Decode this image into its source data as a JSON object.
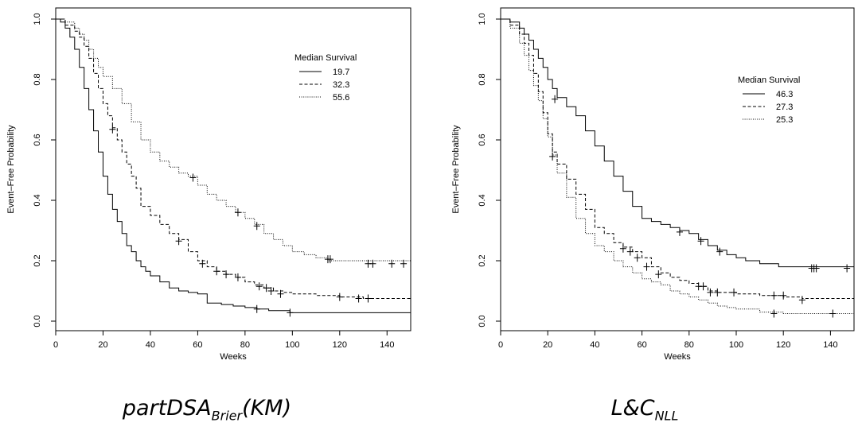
{
  "chart_data": [
    {
      "type": "line",
      "style": "step (Kaplan-Meier survival curves with censoring marks)",
      "xlabel": "Weeks",
      "ylabel": "Event–Free Probability",
      "xlim": [
        0,
        150
      ],
      "ylim": [
        0,
        1
      ],
      "xticks": [
        "0",
        "20",
        "40",
        "60",
        "80",
        "100",
        "120",
        "140"
      ],
      "yticks": [
        "0.0",
        "0.2",
        "0.4",
        "0.6",
        "0.8",
        "1.0"
      ],
      "legend_title": "Median Survival",
      "legend_position": "top-right",
      "series": [
        {
          "name": "19.7",
          "line_style": "solid",
          "x": [
            0,
            2,
            4,
            6,
            8,
            10,
            12,
            14,
            16,
            18,
            20,
            22,
            24,
            26,
            28,
            30,
            32,
            34,
            36,
            38,
            40,
            44,
            48,
            52,
            56,
            60,
            64,
            70,
            75,
            80,
            85,
            90,
            99,
            150
          ],
          "y": [
            1.0,
            0.99,
            0.97,
            0.94,
            0.9,
            0.84,
            0.77,
            0.7,
            0.63,
            0.56,
            0.48,
            0.42,
            0.37,
            0.33,
            0.29,
            0.25,
            0.23,
            0.2,
            0.18,
            0.165,
            0.15,
            0.13,
            0.11,
            0.1,
            0.095,
            0.09,
            0.06,
            0.055,
            0.05,
            0.045,
            0.04,
            0.035,
            0.028,
            0.028
          ],
          "censor_x": [
            85,
            99
          ],
          "censor_y": [
            0.04,
            0.028
          ]
        },
        {
          "name": "32.3",
          "line_style": "dashed",
          "x": [
            0,
            4,
            8,
            10,
            12,
            14,
            16,
            18,
            20,
            22,
            24,
            26,
            28,
            30,
            32,
            34,
            36,
            40,
            44,
            48,
            52,
            56,
            60,
            64,
            68,
            72,
            76,
            80,
            84,
            88,
            92,
            96,
            100,
            110,
            120,
            130,
            150
          ],
          "y": [
            1.0,
            0.98,
            0.96,
            0.94,
            0.91,
            0.87,
            0.82,
            0.77,
            0.72,
            0.68,
            0.64,
            0.6,
            0.56,
            0.52,
            0.48,
            0.44,
            0.38,
            0.35,
            0.32,
            0.29,
            0.27,
            0.23,
            0.2,
            0.18,
            0.165,
            0.155,
            0.145,
            0.13,
            0.12,
            0.11,
            0.1,
            0.095,
            0.09,
            0.085,
            0.08,
            0.075,
            0.075
          ],
          "censor_x": [
            24,
            52,
            62,
            68,
            72,
            77,
            86,
            89,
            91,
            95,
            120,
            128,
            132
          ],
          "censor_y": [
            0.635,
            0.265,
            0.19,
            0.165,
            0.155,
            0.145,
            0.115,
            0.11,
            0.1,
            0.09,
            0.08,
            0.075,
            0.075
          ]
        },
        {
          "name": "55.6",
          "line_style": "dotted",
          "x": [
            0,
            4,
            8,
            10,
            12,
            14,
            16,
            18,
            20,
            24,
            28,
            32,
            36,
            40,
            44,
            48,
            52,
            56,
            60,
            64,
            68,
            72,
            76,
            80,
            84,
            88,
            92,
            96,
            100,
            105,
            110,
            115,
            150
          ],
          "y": [
            1.0,
            0.99,
            0.97,
            0.95,
            0.93,
            0.9,
            0.87,
            0.84,
            0.81,
            0.77,
            0.72,
            0.66,
            0.6,
            0.56,
            0.53,
            0.51,
            0.49,
            0.48,
            0.45,
            0.42,
            0.4,
            0.38,
            0.36,
            0.34,
            0.32,
            0.29,
            0.27,
            0.25,
            0.23,
            0.22,
            0.21,
            0.2,
            0.19
          ],
          "censor_x": [
            58,
            77,
            85,
            115,
            116,
            132,
            134,
            142,
            147
          ],
          "censor_y": [
            0.475,
            0.36,
            0.315,
            0.205,
            0.205,
            0.19,
            0.19,
            0.19,
            0.19
          ]
        }
      ]
    },
    {
      "type": "line",
      "style": "step (Kaplan-Meier survival curves with censoring marks)",
      "xlabel": "Weeks",
      "ylabel": "Event–Free Probability",
      "xlim": [
        0,
        150
      ],
      "ylim": [
        0,
        1
      ],
      "xticks": [
        "0",
        "20",
        "40",
        "60",
        "80",
        "100",
        "120",
        "140"
      ],
      "yticks": [
        "0.0",
        "0.2",
        "0.4",
        "0.6",
        "0.8",
        "1.0"
      ],
      "legend_title": "Median Survival",
      "legend_position": "top-right",
      "series": [
        {
          "name": "46.3",
          "line_style": "solid",
          "x": [
            0,
            4,
            8,
            10,
            12,
            14,
            16,
            18,
            20,
            22,
            24,
            28,
            32,
            36,
            40,
            44,
            48,
            52,
            56,
            60,
            64,
            68,
            72,
            76,
            80,
            84,
            88,
            92,
            96,
            100,
            104,
            110,
            118,
            150
          ],
          "y": [
            1.0,
            0.99,
            0.97,
            0.95,
            0.93,
            0.9,
            0.87,
            0.84,
            0.8,
            0.77,
            0.74,
            0.71,
            0.68,
            0.63,
            0.58,
            0.53,
            0.48,
            0.43,
            0.38,
            0.34,
            0.33,
            0.32,
            0.31,
            0.3,
            0.29,
            0.27,
            0.25,
            0.235,
            0.22,
            0.21,
            0.2,
            0.19,
            0.18,
            0.175
          ],
          "censor_x": [
            23,
            76,
            85,
            93,
            132,
            133,
            134,
            147
          ],
          "censor_y": [
            0.735,
            0.295,
            0.265,
            0.23,
            0.175,
            0.175,
            0.175,
            0.175
          ]
        },
        {
          "name": "27.3",
          "line_style": "dashed",
          "x": [
            0,
            4,
            8,
            10,
            12,
            14,
            16,
            18,
            20,
            22,
            24,
            28,
            32,
            36,
            40,
            44,
            48,
            52,
            56,
            60,
            64,
            68,
            72,
            76,
            80,
            84,
            88,
            92,
            100,
            110,
            120,
            128,
            150
          ],
          "y": [
            1.0,
            0.98,
            0.95,
            0.92,
            0.88,
            0.82,
            0.76,
            0.69,
            0.62,
            0.56,
            0.52,
            0.47,
            0.42,
            0.37,
            0.31,
            0.29,
            0.26,
            0.245,
            0.23,
            0.21,
            0.18,
            0.16,
            0.145,
            0.135,
            0.125,
            0.115,
            0.1,
            0.095,
            0.09,
            0.085,
            0.08,
            0.075,
            0.07
          ],
          "censor_x": [
            22,
            52,
            55,
            58,
            62,
            67,
            84,
            86,
            89,
            92,
            99,
            116,
            120,
            128
          ],
          "censor_y": [
            0.545,
            0.24,
            0.23,
            0.21,
            0.18,
            0.155,
            0.115,
            0.115,
            0.095,
            0.095,
            0.095,
            0.085,
            0.085,
            0.07
          ]
        },
        {
          "name": "25.3",
          "line_style": "dotted",
          "x": [
            0,
            4,
            8,
            10,
            12,
            14,
            16,
            18,
            20,
            22,
            24,
            28,
            32,
            36,
            40,
            44,
            48,
            52,
            56,
            60,
            64,
            68,
            72,
            76,
            80,
            84,
            88,
            92,
            96,
            100,
            110,
            120,
            150
          ],
          "y": [
            1.0,
            0.97,
            0.92,
            0.88,
            0.83,
            0.78,
            0.73,
            0.67,
            0.61,
            0.55,
            0.49,
            0.41,
            0.34,
            0.29,
            0.25,
            0.23,
            0.2,
            0.18,
            0.16,
            0.14,
            0.13,
            0.12,
            0.1,
            0.09,
            0.08,
            0.07,
            0.06,
            0.05,
            0.045,
            0.04,
            0.03,
            0.025,
            0.02
          ],
          "censor_x": [
            116,
            141
          ],
          "censor_y": [
            0.025,
            0.025
          ]
        }
      ]
    }
  ],
  "captions": {
    "left_main": "partDSA",
    "left_sub": "Brier",
    "left_tail": "(KM)",
    "right_main": "L&C",
    "right_sub": "NLL"
  }
}
